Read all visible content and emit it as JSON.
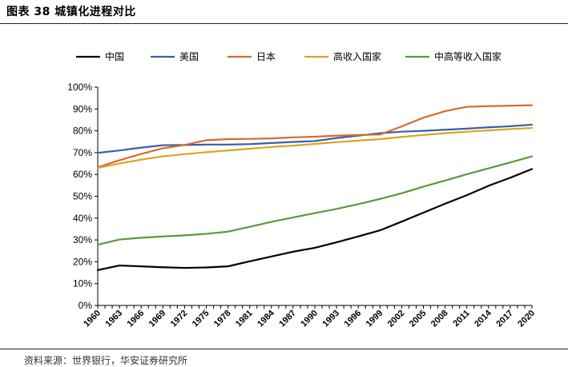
{
  "figure": {
    "title": "图表 38  城镇化进程对比",
    "source": "资料来源：世界银行，华安证券研究所"
  },
  "chart_data": {
    "type": "line",
    "title": "",
    "xlabel": "",
    "ylabel": "",
    "ylim": [
      0,
      100
    ],
    "y_ticks": [
      "0%",
      "10%",
      "20%",
      "30%",
      "40%",
      "50%",
      "60%",
      "70%",
      "80%",
      "90%",
      "100%"
    ],
    "x_ticks": [
      "1960",
      "1963",
      "1966",
      "1969",
      "1972",
      "1975",
      "1978",
      "1981",
      "1984",
      "1987",
      "1990",
      "1993",
      "1996",
      "1999",
      "2002",
      "2005",
      "2008",
      "2011",
      "2014",
      "2017",
      "2020"
    ],
    "legend_position": "top",
    "x": [
      1960,
      1963,
      1966,
      1969,
      1972,
      1975,
      1978,
      1981,
      1984,
      1987,
      1990,
      1993,
      1996,
      1999,
      2002,
      2005,
      2008,
      2011,
      2014,
      2017,
      2020
    ],
    "series": [
      {
        "name": "中国",
        "color": "#000000",
        "values": [
          16.2,
          18.3,
          17.9,
          17.5,
          17.2,
          17.4,
          17.9,
          20.2,
          22.4,
          24.6,
          26.4,
          28.9,
          31.6,
          34.4,
          38.4,
          42.5,
          46.6,
          50.5,
          54.8,
          58.5,
          62.5
        ]
      },
      {
        "name": "美国",
        "color": "#3a5fa8",
        "values": [
          69.9,
          71.0,
          72.3,
          73.4,
          73.5,
          73.7,
          73.7,
          73.9,
          74.4,
          74.9,
          75.3,
          76.7,
          77.8,
          78.9,
          79.6,
          80.0,
          80.5,
          81.0,
          81.6,
          82.1,
          82.8
        ]
      },
      {
        "name": "日本",
        "color": "#d86a2a",
        "values": [
          63.3,
          66.5,
          69.4,
          72.0,
          73.5,
          75.7,
          76.2,
          76.3,
          76.5,
          77.0,
          77.3,
          77.8,
          78.1,
          78.3,
          82.0,
          86.0,
          89.0,
          91.0,
          91.3,
          91.5,
          91.7
        ]
      },
      {
        "name": "高收入国家",
        "color": "#d9a520",
        "values": [
          63.0,
          65.0,
          66.8,
          68.3,
          69.3,
          70.2,
          71.0,
          71.8,
          72.6,
          73.2,
          74.0,
          74.8,
          75.5,
          76.2,
          77.2,
          78.1,
          78.9,
          79.6,
          80.2,
          80.8,
          81.3
        ]
      },
      {
        "name": "中高等收入国家",
        "color": "#5a9a3a",
        "values": [
          27.8,
          30.2,
          31.0,
          31.6,
          32.1,
          32.8,
          33.8,
          36.0,
          38.3,
          40.3,
          42.3,
          44.2,
          46.4,
          48.8,
          51.4,
          54.4,
          57.2,
          60.1,
          62.8,
          65.5,
          68.3
        ]
      }
    ]
  }
}
